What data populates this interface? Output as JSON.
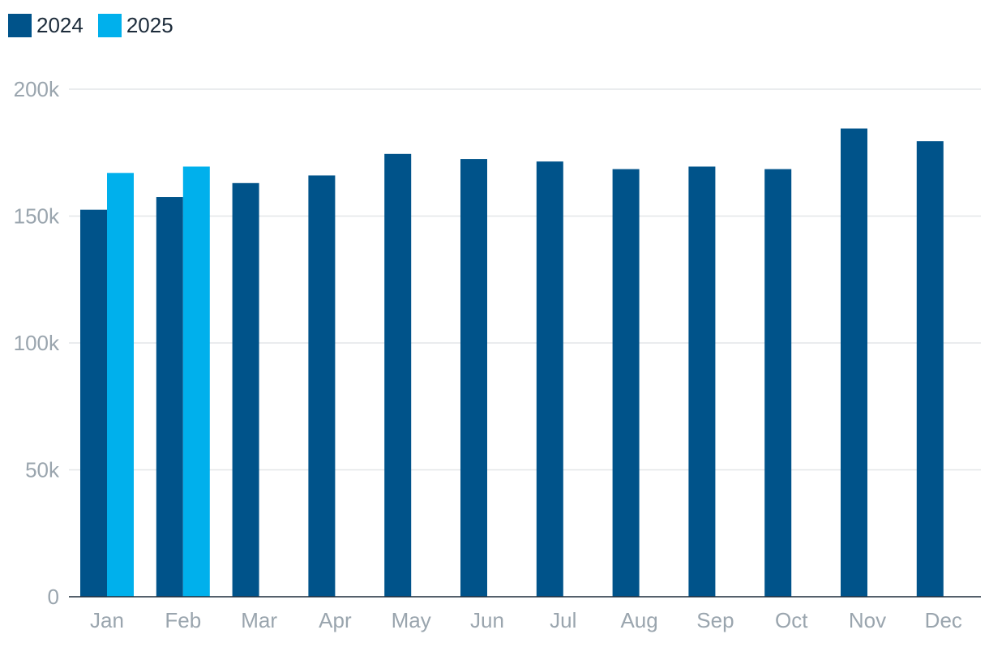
{
  "legend": {
    "items": [
      {
        "label": "2024",
        "color": "#00538a"
      },
      {
        "label": "2025",
        "color": "#00b0ec"
      }
    ]
  },
  "chart_data": {
    "type": "bar",
    "categories": [
      "Jan",
      "Feb",
      "Mar",
      "Apr",
      "May",
      "Jun",
      "Jul",
      "Aug",
      "Sep",
      "Oct",
      "Nov",
      "Dec"
    ],
    "series": [
      {
        "name": "2024",
        "color": "#00538a",
        "values": [
          152500,
          157500,
          163000,
          166000,
          174500,
          172500,
          171500,
          168500,
          169500,
          168500,
          184500,
          179500
        ]
      },
      {
        "name": "2025",
        "color": "#00b0ec",
        "values": [
          167000,
          169500,
          null,
          null,
          null,
          null,
          null,
          null,
          null,
          null,
          null,
          null
        ]
      }
    ],
    "ylim": [
      0,
      200000
    ],
    "yticks": [
      0,
      50000,
      100000,
      150000,
      200000
    ],
    "ytick_labels": [
      "0",
      "50k",
      "100k",
      "150k",
      "200k"
    ],
    "grid": true,
    "legend_position": "top-left",
    "title": "",
    "xlabel": "",
    "ylabel": ""
  }
}
